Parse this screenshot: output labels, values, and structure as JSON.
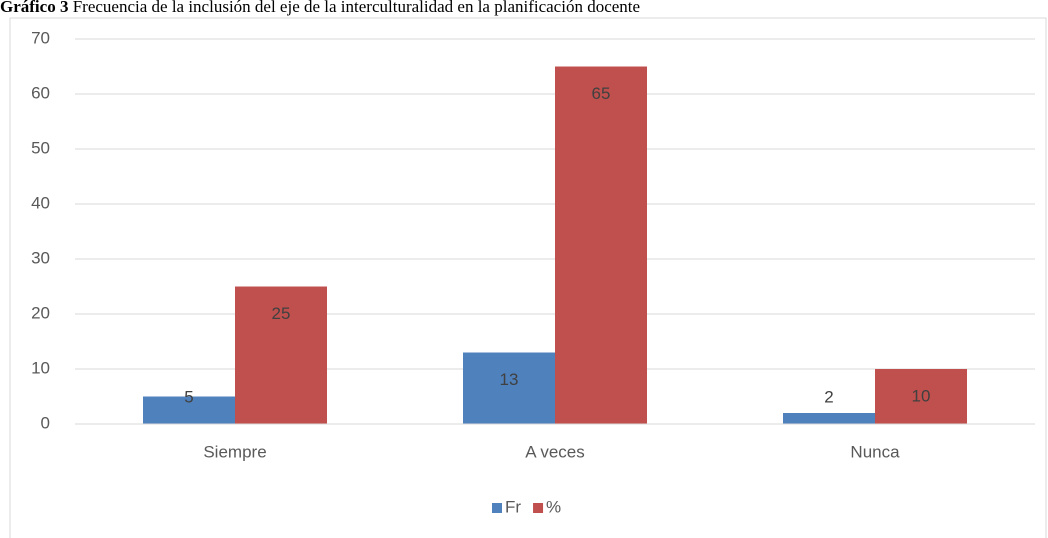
{
  "chart_data": {
    "type": "bar",
    "title_label": "Gráfico 3",
    "title": "Frecuencia de la inclusión del eje de la interculturalidad en la planificación docente",
    "categories": [
      "Siempre",
      "A veces",
      "Nunca"
    ],
    "series": [
      {
        "name": "Fr",
        "color": "#4f81bd",
        "values": [
          5,
          13,
          2
        ]
      },
      {
        "name": "%",
        "color": "#c0504d",
        "values": [
          25,
          65,
          10
        ]
      }
    ],
    "ylim": [
      0,
      70
    ],
    "yticks": [
      0,
      10,
      20,
      30,
      40,
      50,
      60,
      70
    ],
    "grid": true,
    "legend": "bottom"
  }
}
